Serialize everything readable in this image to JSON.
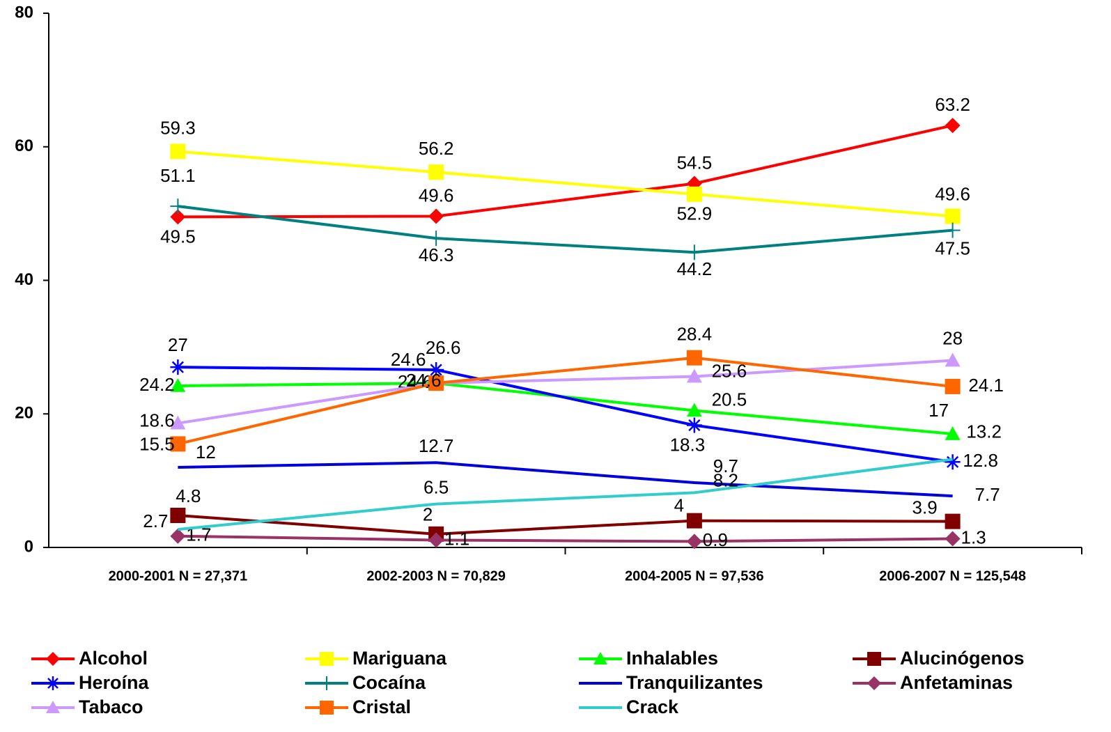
{
  "chart_data": {
    "type": "line",
    "categories": [
      "2000-2001 N = 27,371",
      "2002-2003 N = 70,829",
      "2004-2005 N = 97,536",
      "2006-2007 N = 125,548"
    ],
    "ylim": [
      0,
      80
    ],
    "yticks": [
      0,
      20,
      40,
      60,
      80
    ],
    "grid": false,
    "legend": "bottom",
    "series": [
      {
        "name": "Alcohol",
        "color": "#ff0000",
        "marker": "diamond",
        "values": [
          49.5,
          49.6,
          54.5,
          63.2
        ]
      },
      {
        "name": "Mariguana",
        "color": "#ffff00",
        "marker": "square",
        "values": [
          59.3,
          56.2,
          52.9,
          49.6
        ]
      },
      {
        "name": "Inhalables",
        "color": "#00ff00",
        "marker": "triangle",
        "values": [
          24.2,
          24.6,
          20.5,
          17
        ]
      },
      {
        "name": "Alucinógenos",
        "color": "#800000",
        "marker": "square",
        "values": [
          4.8,
          2,
          4,
          3.9
        ]
      },
      {
        "name": "Heroína",
        "color": "#0000ff",
        "marker": "asterisk",
        "values": [
          27,
          26.6,
          18.3,
          12.8
        ]
      },
      {
        "name": "Cocaína",
        "color": "#008080",
        "marker": "plus",
        "values": [
          51.1,
          46.3,
          44.2,
          47.5
        ]
      },
      {
        "name": "Tranquilizantes",
        "color": "#0000dd",
        "marker": "none",
        "values": [
          12,
          12.7,
          9.7,
          7.7
        ]
      },
      {
        "name": "Anfetaminas",
        "color": "#993366",
        "marker": "diamond",
        "values": [
          1.7,
          1.1,
          0.9,
          1.3
        ]
      },
      {
        "name": "Tabaco",
        "color": "#cc99ff",
        "marker": "triangle",
        "values": [
          18.6,
          24.6,
          25.6,
          28
        ]
      },
      {
        "name": "Cristal",
        "color": "#ff6600",
        "marker": "square",
        "values": [
          15.5,
          24.6,
          28.4,
          24.1
        ]
      },
      {
        "name": "Crack",
        "color": "#33cccc",
        "marker": "none",
        "values": [
          2.7,
          6.5,
          8.2,
          13.2
        ]
      }
    ]
  }
}
